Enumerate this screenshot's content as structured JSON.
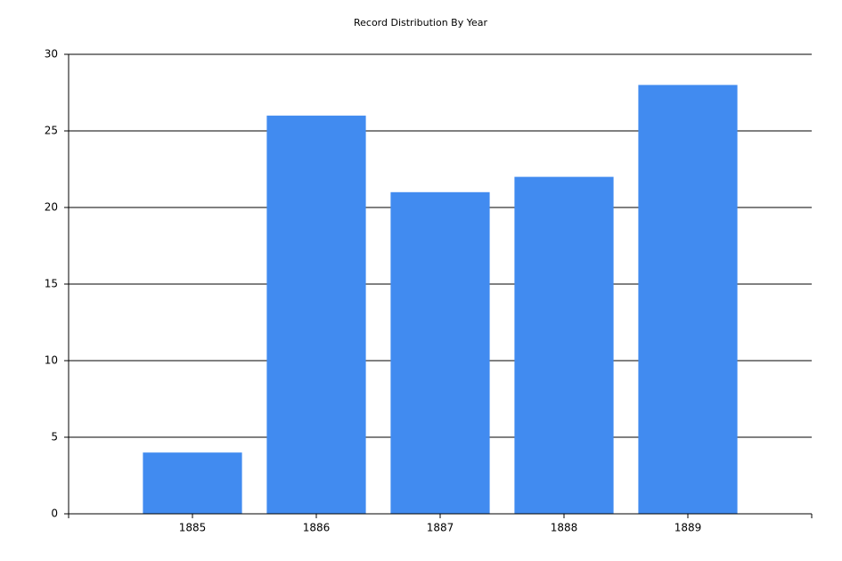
{
  "chart_data": {
    "type": "bar",
    "title": "Record Distribution By Year",
    "x": [
      1885,
      1886,
      1887,
      1888,
      1889
    ],
    "values": [
      4,
      26,
      21,
      22,
      28
    ],
    "color": "#418bf0",
    "xlim": [
      1884,
      1890
    ],
    "xticks": [
      1885,
      1886,
      1887,
      1888,
      1889
    ],
    "ylim": [
      0,
      30
    ],
    "yticks": [
      0,
      5,
      10,
      15,
      20,
      25,
      30
    ],
    "grid": true
  }
}
